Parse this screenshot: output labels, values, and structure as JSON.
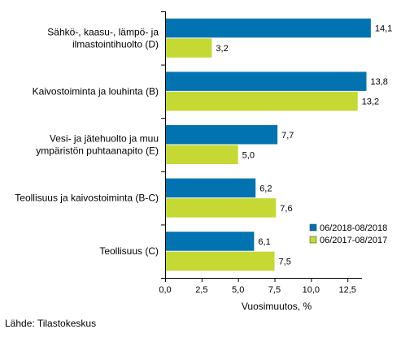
{
  "chart_data": {
    "type": "bar",
    "orientation": "horizontal",
    "categories": [
      [
        "Sähkö-, kaasu-, lämpö- ja",
        "ilmastointihuolto (D)"
      ],
      [
        "Kaivostoiminta ja louhinta (B)"
      ],
      [
        "Vesi- ja jätehuolto ja muu",
        "ympäristön puhtaanapito (E)"
      ],
      [
        "Teollisuus ja kaivostoiminta (B-C)"
      ],
      [
        "Teollisuus (C)"
      ]
    ],
    "series": [
      {
        "name": "06/2018-08/2018",
        "color": "#0073b0",
        "values": [
          14.1,
          13.8,
          7.7,
          6.2,
          6.1
        ],
        "labels": [
          "14,1",
          "13,8",
          "7,7",
          "6,2",
          "6,1"
        ]
      },
      {
        "name": "06/2017-08/2017",
        "color": "#c5d833",
        "values": [
          3.2,
          13.2,
          5.0,
          7.6,
          7.5
        ],
        "labels": [
          "3,2",
          "13,2",
          "5,0",
          "7,6",
          "7,5"
        ]
      }
    ],
    "xlim": [
      0,
      15.5
    ],
    "xticks": [
      0,
      2.5,
      5,
      7.5,
      10,
      12.5
    ],
    "xtick_labels": [
      "0,0",
      "2,5",
      "5,0",
      "7,5",
      "10,0",
      "12,5"
    ],
    "xlabel": "Vuosimuutos, %",
    "ylabel": "",
    "title": "",
    "grid": false,
    "legend_position": "bottom-right"
  },
  "source": "Lähde: Tilastokeskus"
}
